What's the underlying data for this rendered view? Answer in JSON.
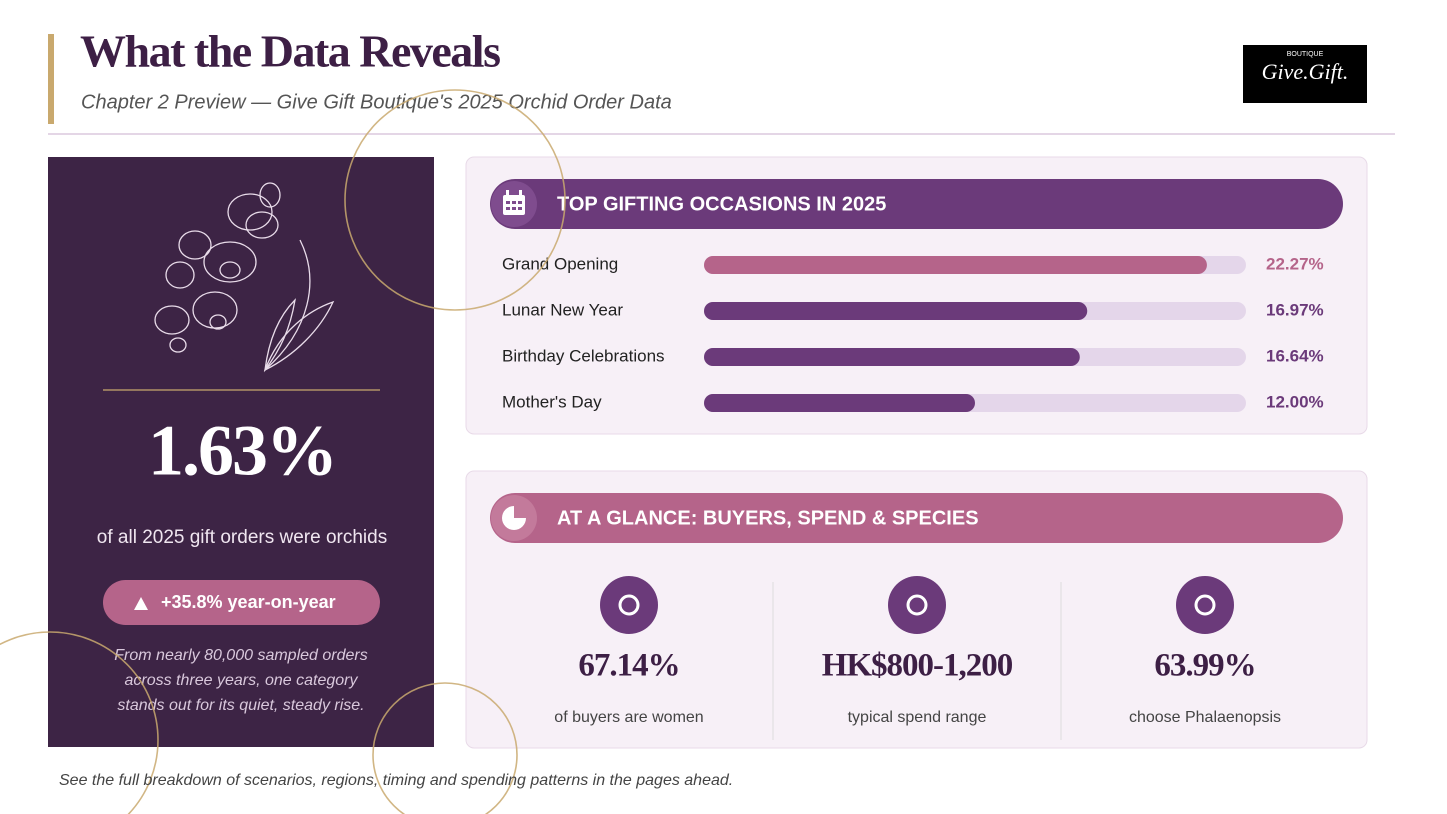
{
  "header": {
    "title": "What the Data Reveals",
    "subtitle": "Chapter 2 Preview  —  Give Gift Boutique's 2025 Orchid Order Data"
  },
  "logo": {
    "top": "BOUTIQUE",
    "name": "Give.Gift."
  },
  "highlight": {
    "stat": "1.63%",
    "caption": "of all 2025 gift orders were orchids",
    "badge": "+35.8% year-on-year",
    "note_lines": [
      "From nearly 80,000 sampled orders",
      "across three years, one category",
      "stands out for its quiet, steady rise."
    ]
  },
  "chart_data": {
    "type": "bar",
    "title": "TOP GIFTING OCCASIONS IN 2025",
    "categories": [
      "Grand Opening",
      "Lunar New Year",
      "Birthday Celebrations",
      "Mother's Day"
    ],
    "values": [
      22.27,
      16.97,
      16.64,
      12.0
    ],
    "value_labels": [
      "22.27%",
      "16.97%",
      "16.64%",
      "12.00%"
    ],
    "colors": [
      "#b5648a",
      "#6b3a7a",
      "#6b3a7a",
      "#6b3a7a"
    ],
    "xlim": [
      0,
      24
    ]
  },
  "glance": {
    "title": "AT A GLANCE: BUYERS, SPEND & SPECIES",
    "stats": [
      {
        "value": "67.14%",
        "caption": "of buyers are women"
      },
      {
        "value": "HK$800-1,200",
        "caption": "typical spend range"
      },
      {
        "value": "63.99%",
        "caption": "choose Phalaenopsis"
      }
    ]
  },
  "footer": "See the full breakdown of scenarios, regions, timing and spending patterns in the pages ahead."
}
